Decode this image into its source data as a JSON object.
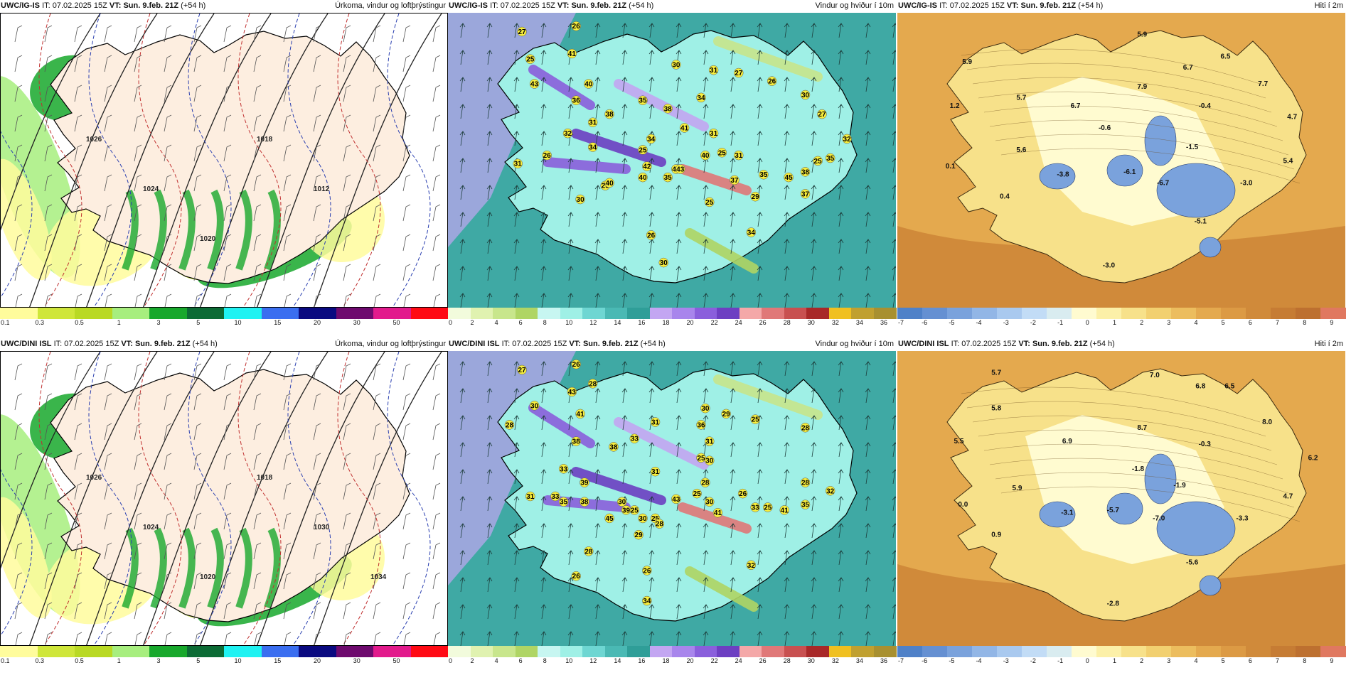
{
  "panels": [
    {
      "id": "p1",
      "model": "UWC/IG-IS",
      "it_label": "IT:",
      "it": "07.02.2025 15Z",
      "vt_label": "VT:",
      "vt": "Sun. 9.feb. 21Z",
      "lead": "(+54 h)",
      "title": "Úrkoma, vindur og loftþrýstingur",
      "scale": "precip",
      "pressure_labels": [
        "1026",
        "1024",
        "1020",
        "1018",
        "1012"
      ]
    },
    {
      "id": "p2",
      "model": "UWC/IG-IS",
      "it_label": "IT:",
      "it": "07.02.2025 15Z",
      "vt_label": "VT:",
      "vt": "Sun. 9.feb. 21Z",
      "lead": "(+54 h)",
      "title": "Vindur og hviður í 10m",
      "scale": "wind",
      "gusts": [
        [
          "27",
          0.14,
          0.04
        ],
        [
          "26",
          0.27,
          0.02
        ],
        [
          "41",
          0.26,
          0.12
        ],
        [
          "25",
          0.16,
          0.14
        ],
        [
          "43",
          0.17,
          0.23
        ],
        [
          "40",
          0.3,
          0.23
        ],
        [
          "36",
          0.27,
          0.29
        ],
        [
          "38",
          0.35,
          0.34
        ],
        [
          "31",
          0.31,
          0.37
        ],
        [
          "32",
          0.25,
          0.41
        ],
        [
          "34",
          0.31,
          0.46
        ],
        [
          "26",
          0.2,
          0.49
        ],
        [
          "31",
          0.13,
          0.52
        ],
        [
          "30",
          0.51,
          0.16
        ],
        [
          "31",
          0.6,
          0.18
        ],
        [
          "27",
          0.66,
          0.19
        ],
        [
          "26",
          0.74,
          0.22
        ],
        [
          "30",
          0.82,
          0.27
        ],
        [
          "35",
          0.43,
          0.29
        ],
        [
          "38",
          0.49,
          0.32
        ],
        [
          "34",
          0.57,
          0.28
        ],
        [
          "41",
          0.53,
          0.39
        ],
        [
          "31",
          0.6,
          0.41
        ],
        [
          "34",
          0.45,
          0.43
        ],
        [
          "40",
          0.58,
          0.49
        ],
        [
          "25",
          0.43,
          0.47
        ],
        [
          "25",
          0.62,
          0.48
        ],
        [
          "31",
          0.66,
          0.49
        ],
        [
          "27",
          0.86,
          0.34
        ],
        [
          "32",
          0.92,
          0.43
        ],
        [
          "35",
          0.88,
          0.5
        ],
        [
          "25",
          0.85,
          0.51
        ],
        [
          "37",
          0.65,
          0.58
        ],
        [
          "42",
          0.44,
          0.53
        ],
        [
          "40",
          0.43,
          0.57
        ],
        [
          "35",
          0.49,
          0.57
        ],
        [
          "44",
          0.51,
          0.54
        ],
        [
          "43",
          0.52,
          0.54
        ],
        [
          "25",
          0.34,
          0.6
        ],
        [
          "40",
          0.35,
          0.59
        ],
        [
          "35",
          0.72,
          0.56
        ],
        [
          "45",
          0.78,
          0.57
        ],
        [
          "38",
          0.82,
          0.55
        ],
        [
          "37",
          0.82,
          0.63
        ],
        [
          "29",
          0.7,
          0.64
        ],
        [
          "25",
          0.59,
          0.66
        ],
        [
          "30",
          0.28,
          0.65
        ],
        [
          "34",
          0.69,
          0.77
        ],
        [
          "26",
          0.45,
          0.78
        ],
        [
          "30",
          0.48,
          0.88
        ]
      ]
    },
    {
      "id": "p3",
      "model": "UWC/IG-IS",
      "it_label": "IT:",
      "it": "07.02.2025 15Z",
      "vt_label": "VT:",
      "vt": "Sun. 9.feb. 21Z",
      "lead": "(+54 h)",
      "title": "Hiti í 2m",
      "scale": "temp",
      "temps": [
        [
          "5.9",
          0.13,
          0.15
        ],
        [
          "5.9",
          0.55,
          0.05
        ],
        [
          "6.5",
          0.75,
          0.13
        ],
        [
          "6.7",
          0.66,
          0.17
        ],
        [
          "7.7",
          0.84,
          0.23
        ],
        [
          "5.7",
          0.26,
          0.28
        ],
        [
          "6.7",
          0.39,
          0.31
        ],
        [
          "7.9",
          0.55,
          0.24
        ],
        [
          "1.2",
          0.1,
          0.31
        ],
        [
          "-0.4",
          0.7,
          0.31
        ],
        [
          "4.7",
          0.91,
          0.35
        ],
        [
          "-0.6",
          0.46,
          0.39
        ],
        [
          "5.6",
          0.26,
          0.47
        ],
        [
          "-1.5",
          0.67,
          0.46
        ],
        [
          "0.1",
          0.09,
          0.53
        ],
        [
          "5.4",
          0.9,
          0.51
        ],
        [
          "-3.8",
          0.36,
          0.56
        ],
        [
          "-6.1",
          0.52,
          0.55
        ],
        [
          "-6.7",
          0.6,
          0.59
        ],
        [
          "-3.0",
          0.8,
          0.59
        ],
        [
          "0.4",
          0.22,
          0.64
        ],
        [
          "-5.1",
          0.69,
          0.73
        ],
        [
          "-3.0",
          0.47,
          0.89
        ]
      ]
    },
    {
      "id": "p4",
      "model": "UWC/DINI ISL",
      "it_label": "IT:",
      "it": "07.02.2025 15Z",
      "vt_label": "VT:",
      "vt": "Sun. 9.feb. 21Z",
      "lead": "(+54 h)",
      "title": "Úrkoma, vindur og loftþrýstingur",
      "scale": "precip",
      "pressure_labels": [
        "1026",
        "1024",
        "1020",
        "1018",
        "1030",
        "1034"
      ]
    },
    {
      "id": "p5",
      "model": "UWC/DINI ISL",
      "it_label": "IT:",
      "it": "07.02.2025 15Z",
      "vt_label": "VT:",
      "vt": "Sun. 9.feb. 21Z",
      "lead": "(+54 h)",
      "title": "Vindur og hviður í 10m",
      "scale": "wind",
      "gusts": [
        [
          "27",
          0.14,
          0.04
        ],
        [
          "26",
          0.27,
          0.02
        ],
        [
          "28",
          0.31,
          0.09
        ],
        [
          "43",
          0.26,
          0.12
        ],
        [
          "30",
          0.17,
          0.17
        ],
        [
          "41",
          0.28,
          0.2
        ],
        [
          "28",
          0.11,
          0.24
        ],
        [
          "38",
          0.27,
          0.3
        ],
        [
          "33",
          0.41,
          0.29
        ],
        [
          "38",
          0.36,
          0.32
        ],
        [
          "31",
          0.46,
          0.23
        ],
        [
          "36",
          0.57,
          0.24
        ],
        [
          "30",
          0.58,
          0.18
        ],
        [
          "29",
          0.63,
          0.2
        ],
        [
          "25",
          0.7,
          0.22
        ],
        [
          "28",
          0.82,
          0.25
        ],
        [
          "31",
          0.59,
          0.3
        ],
        [
          "25",
          0.57,
          0.36
        ],
        [
          "30",
          0.59,
          0.37
        ],
        [
          "33",
          0.24,
          0.4
        ],
        [
          "39",
          0.29,
          0.45
        ],
        [
          "31",
          0.46,
          0.41
        ],
        [
          "28",
          0.58,
          0.45
        ],
        [
          "31",
          0.16,
          0.5
        ],
        [
          "33",
          0.22,
          0.5
        ],
        [
          "35",
          0.24,
          0.52
        ],
        [
          "38",
          0.29,
          0.52
        ],
        [
          "30",
          0.38,
          0.52
        ],
        [
          "25",
          0.41,
          0.55
        ],
        [
          "45",
          0.35,
          0.58
        ],
        [
          "39",
          0.39,
          0.55
        ],
        [
          "30",
          0.43,
          0.58
        ],
        [
          "25",
          0.46,
          0.58
        ],
        [
          "28",
          0.47,
          0.6
        ],
        [
          "43",
          0.51,
          0.51
        ],
        [
          "25",
          0.56,
          0.49
        ],
        [
          "30",
          0.59,
          0.52
        ],
        [
          "41",
          0.61,
          0.56
        ],
        [
          "26",
          0.67,
          0.49
        ],
        [
          "33",
          0.7,
          0.54
        ],
        [
          "25",
          0.73,
          0.54
        ],
        [
          "41",
          0.77,
          0.55
        ],
        [
          "35",
          0.82,
          0.53
        ],
        [
          "28",
          0.82,
          0.45
        ],
        [
          "32",
          0.88,
          0.48
        ],
        [
          "29",
          0.42,
          0.64
        ],
        [
          "28",
          0.3,
          0.7
        ],
        [
          "26",
          0.27,
          0.79
        ],
        [
          "32",
          0.69,
          0.75
        ],
        [
          "26",
          0.44,
          0.77
        ],
        [
          "34",
          0.44,
          0.88
        ]
      ]
    },
    {
      "id": "p6",
      "model": "UWC/DINI ISL",
      "it_label": "IT:",
      "it": "07.02.2025 15Z",
      "vt_label": "VT:",
      "vt": "Sun. 9.feb. 21Z",
      "lead": "(+54 h)",
      "title": "Hiti í 2m",
      "scale": "temp",
      "temps": [
        [
          "5.7",
          0.2,
          0.05
        ],
        [
          "7.0",
          0.58,
          0.06
        ],
        [
          "6.8",
          0.69,
          0.1
        ],
        [
          "6.5",
          0.76,
          0.1
        ],
        [
          "5.8",
          0.2,
          0.18
        ],
        [
          "8.0",
          0.85,
          0.23
        ],
        [
          "5.5",
          0.11,
          0.3
        ],
        [
          "8.7",
          0.55,
          0.25
        ],
        [
          "6.9",
          0.37,
          0.3
        ],
        [
          "-0.3",
          0.7,
          0.31
        ],
        [
          "6.2",
          0.96,
          0.36
        ],
        [
          "-1.8",
          0.54,
          0.4
        ],
        [
          "5.9",
          0.25,
          0.47
        ],
        [
          "-1.9",
          0.64,
          0.46
        ],
        [
          "0.0",
          0.12,
          0.53
        ],
        [
          "4.7",
          0.9,
          0.5
        ],
        [
          "-3.1",
          0.37,
          0.56
        ],
        [
          "-5.7",
          0.48,
          0.55
        ],
        [
          "-7.0",
          0.59,
          0.58
        ],
        [
          "-3.3",
          0.79,
          0.58
        ],
        [
          "0.9",
          0.2,
          0.64
        ],
        [
          "-5.6",
          0.67,
          0.74
        ],
        [
          "-2.8",
          0.48,
          0.89
        ]
      ]
    }
  ],
  "scales": {
    "precip": {
      "colors": [
        "#fffc9c",
        "#cfe63a",
        "#b9d924",
        "#a7ee7e",
        "#18a82c",
        "#0c6b35",
        "#1ff2f2",
        "#3a6ef0",
        "#0a0a80",
        "#6e0a6e",
        "#e21a8c",
        "#ff0a14"
      ],
      "ticks": [
        "0.1",
        "0.3",
        "0.5",
        "1",
        "3",
        "5",
        "10",
        "15",
        "20",
        "30",
        "50"
      ]
    },
    "wind": {
      "colors": [
        "#f2fbdc",
        "#e0f2b0",
        "#c8e68c",
        "#afd564",
        "#c7f6f1",
        "#9ff0e6",
        "#6ed6d2",
        "#4ab9b4",
        "#2f9e98",
        "#c3a6f2",
        "#a885ec",
        "#8a5fdc",
        "#6d3fc2",
        "#f4a8a8",
        "#e07878",
        "#c85050",
        "#a82828",
        "#f0c020",
        "#c0a030",
        "#a89030"
      ],
      "ticks": [
        "0",
        "2",
        "4",
        "6",
        "8",
        "10",
        "12",
        "14",
        "16",
        "18",
        "20",
        "22",
        "24",
        "26",
        "28",
        "30",
        "32",
        "34",
        "36"
      ]
    },
    "temp": {
      "colors": [
        "#4f81c8",
        "#6590d2",
        "#7aa2dc",
        "#92b6e6",
        "#a9c9ef",
        "#c2dcf6",
        "#d9ecf0",
        "#fffbd0",
        "#fcf0a8",
        "#f7e18a",
        "#f2d070",
        "#ecbd5e",
        "#e4a94e",
        "#dc9a44",
        "#d08a3a",
        "#c67c34",
        "#bd7030",
        "#e07860"
      ],
      "ticks": [
        "-7",
        "-6",
        "-5",
        "-4",
        "-3",
        "-2",
        "-1",
        "0",
        "1",
        "2",
        "3",
        "4",
        "5",
        "6",
        "7",
        "8",
        "9"
      ]
    }
  }
}
